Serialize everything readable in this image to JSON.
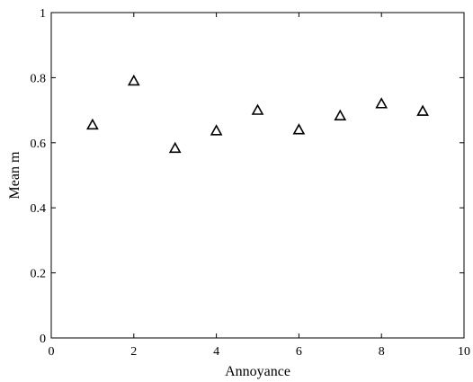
{
  "chart_data": {
    "type": "scatter",
    "title": "",
    "xlabel": "Annoyance",
    "ylabel": "Mean m",
    "xlim": [
      0,
      10
    ],
    "ylim": [
      0,
      1
    ],
    "xticks": [
      0,
      2,
      4,
      6,
      8,
      10
    ],
    "yticks": [
      0,
      0.2,
      0.4,
      0.6,
      0.8,
      1
    ],
    "xtick_labels": [
      "0",
      "2",
      "4",
      "6",
      "8",
      "10"
    ],
    "ytick_labels": [
      "0",
      "0.2",
      "0.4",
      "0.6",
      "0.8",
      "1"
    ],
    "grid": false,
    "marker": "triangle-open",
    "marker_color": "#000000",
    "series": [
      {
        "x": [
          1,
          2,
          3,
          4,
          5,
          6,
          7,
          8,
          9
        ],
        "y": [
          0.655,
          0.79,
          0.583,
          0.637,
          0.7,
          0.64,
          0.683,
          0.72,
          0.697
        ]
      }
    ]
  }
}
